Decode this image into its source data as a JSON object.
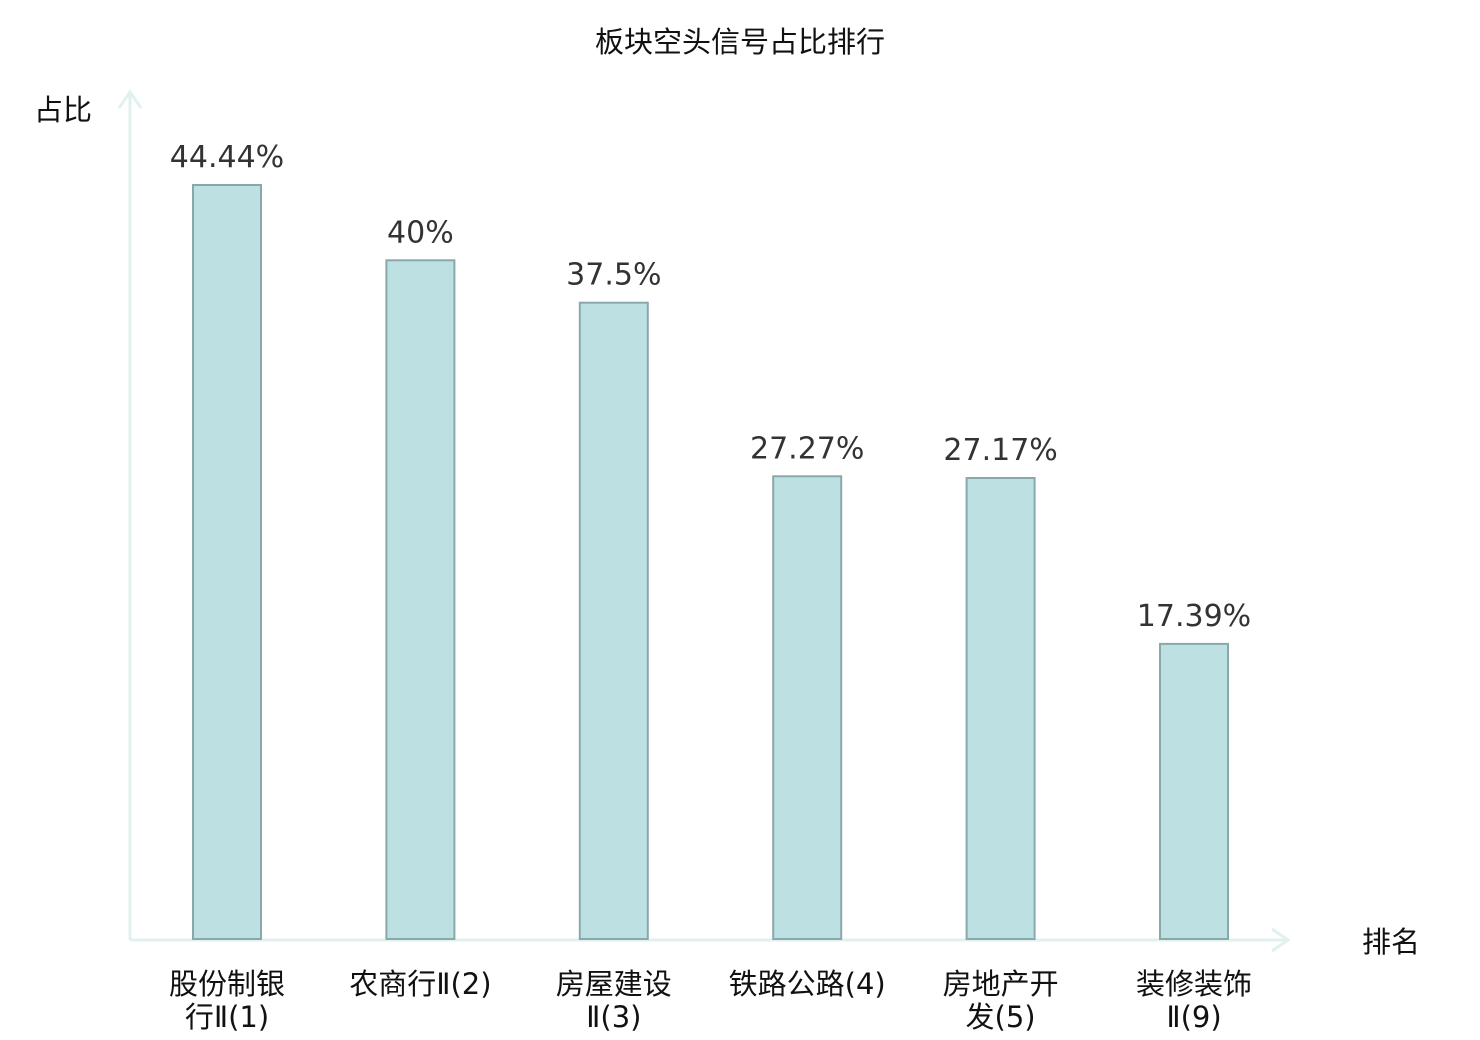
{
  "chart_data": {
    "type": "bar",
    "title": "板块空头信号占比排行",
    "ylabel": "占比",
    "xlabel": "排名",
    "categories": [
      [
        "股份制银",
        "行Ⅱ(1)"
      ],
      [
        "农商行Ⅱ(2)"
      ],
      [
        "房屋建设",
        "Ⅱ(3)"
      ],
      [
        "铁路公路(4)"
      ],
      [
        "房地产开",
        "发(5)"
      ],
      [
        "装修装饰",
        "Ⅱ(9)"
      ]
    ],
    "values": [
      44.44,
      40,
      37.5,
      27.27,
      27.17,
      17.39
    ],
    "value_labels": [
      "44.44%",
      "40%",
      "37.5%",
      "27.27%",
      "27.17%",
      "17.39%"
    ],
    "highlight_index": 5,
    "ylim": [
      0,
      50
    ],
    "grid": false,
    "colors": {
      "bar_fill": "#bde1e3",
      "bar_stroke": "#8aa8aa",
      "axis": "#e0f1ef",
      "highlight_text": "#e0141e",
      "text": "#111111",
      "value_text": "#333333"
    }
  }
}
